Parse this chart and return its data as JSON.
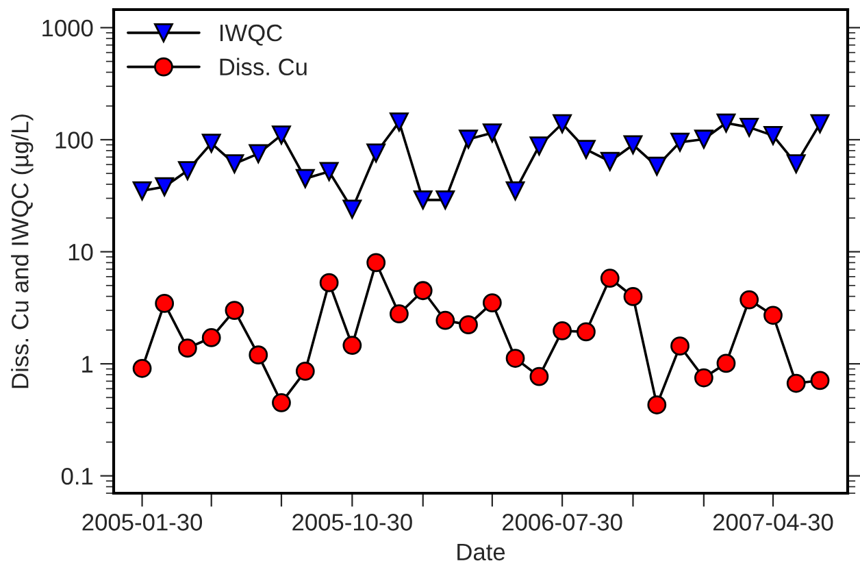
{
  "chart_data": {
    "type": "line",
    "xlabel": "Date",
    "ylabel": "Diss. Cu and IWQC (µg/L)",
    "log": "y",
    "grid": false,
    "legend": "top left",
    "line_style": "solid",
    "x": [
      "2005-01-30",
      "2005-02-28",
      "2005-03-30",
      "2005-04-30",
      "2005-05-30",
      "2005-06-30",
      "2005-07-30",
      "2005-08-30",
      "2005-09-30",
      "2005-10-30",
      "2005-11-30",
      "2005-12-30",
      "2006-01-30",
      "2006-02-28",
      "2006-03-30",
      "2006-04-30",
      "2006-05-30",
      "2006-06-30",
      "2006-07-30",
      "2006-08-30",
      "2006-09-30",
      "2006-10-30",
      "2006-11-30",
      "2006-12-30",
      "2007-01-30",
      "2007-02-28",
      "2007-03-30",
      "2007-04-30",
      "2007-05-30",
      "2007-06-30"
    ],
    "xlim": [
      "2004-12-24",
      "2007-08-05"
    ],
    "xticks": [
      {
        "value": "2005-01-30",
        "label": "2005-01-30"
      },
      {
        "value": "2005-04-30",
        "label": null
      },
      {
        "value": "2005-07-30",
        "label": null
      },
      {
        "value": "2005-10-30",
        "label": "2005-10-30"
      },
      {
        "value": "2006-01-30",
        "label": null
      },
      {
        "value": "2006-04-30",
        "label": null
      },
      {
        "value": "2006-07-30",
        "label": "2006-07-30"
      },
      {
        "value": "2006-10-30",
        "label": null
      },
      {
        "value": "2007-01-30",
        "label": null
      },
      {
        "value": "2007-04-30",
        "label": "2007-04-30"
      }
    ],
    "ylim": [
      0.07,
      1450
    ],
    "yticks": [
      0.1,
      1,
      10,
      100,
      1000
    ],
    "series": [
      {
        "name": "IWQC",
        "color": "#0000ff",
        "marker": "triangle",
        "values": [
          35,
          38,
          53,
          93,
          61,
          75,
          110,
          45,
          52,
          24,
          76,
          144,
          29,
          29,
          101,
          115,
          35,
          88,
          139,
          82,
          64,
          90,
          58,
          95,
          101,
          141,
          129,
          109,
          61,
          139
        ]
      },
      {
        "name": "Diss. Cu",
        "color": "#ff0000",
        "marker": "circle",
        "values": [
          0.91,
          3.46,
          1.38,
          1.71,
          3.0,
          1.2,
          0.45,
          0.86,
          5.3,
          1.46,
          8.0,
          2.79,
          4.5,
          2.44,
          2.23,
          3.5,
          1.12,
          0.77,
          1.97,
          1.93,
          5.8,
          3.98,
          0.43,
          1.44,
          0.75,
          1.01,
          3.73,
          2.71,
          0.67,
          0.71
        ]
      }
    ]
  }
}
